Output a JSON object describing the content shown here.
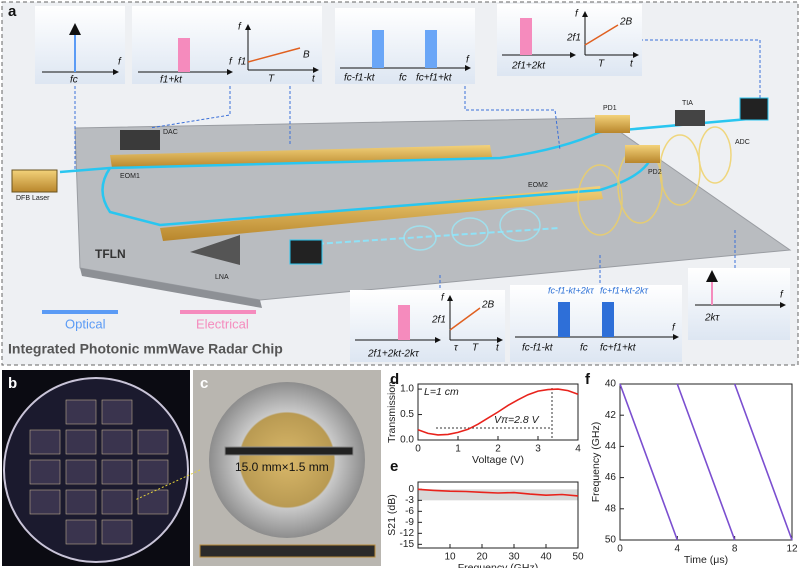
{
  "panel_labels": [
    "a",
    "b",
    "c",
    "d",
    "e",
    "f"
  ],
  "diagram": {
    "title": "Integrated Photonic mmWave Radar Chip",
    "legend": [
      {
        "label": "Optical",
        "color": "#5b9bf5"
      },
      {
        "label": "Electrical",
        "color": "#f58bbd"
      }
    ],
    "components": {
      "laser": "DFB Laser",
      "dac": "DAC",
      "eom1": "EOM1",
      "eom2": "EOM2",
      "substrate": "TFLN",
      "lna": "LNA",
      "pd1": "PD1",
      "tia": "TIA",
      "pd2": "PD2",
      "adc": "ADC"
    },
    "insets": [
      {
        "labels": [
          "fc",
          "f"
        ]
      },
      {
        "labels": [
          "f1+kt",
          "f"
        ]
      },
      {
        "labels": [
          "f",
          "t",
          "f1",
          "B",
          "T"
        ]
      },
      {
        "labels": [
          "fc-f1-kt",
          "fc",
          "fc+f1+kt",
          "f"
        ]
      },
      {
        "labels": [
          "2f1+2kt",
          "f",
          "t",
          "2f1",
          "2B",
          "T"
        ]
      },
      {
        "labels": [
          "2f1+2kt-2kτ",
          "f",
          "t",
          "2f1",
          "2B",
          "τ",
          "T"
        ]
      },
      {
        "labels": [
          "fc-f1-kt+2kτ",
          "fc+f1+kt-2kτ",
          "fc-f1-kt",
          "fc",
          "fc+f1+kt",
          "f"
        ]
      },
      {
        "labels": [
          "2kτ",
          "f"
        ]
      }
    ]
  },
  "photo_c": {
    "dimension": "15.0 mm×1.5 mm"
  },
  "chart_data": [
    {
      "type": "line",
      "x_label": "Voltage (V)",
      "y_label": "Transmission",
      "annotations": [
        "L=1 cm",
        "Vπ=2.8 V"
      ],
      "x": [
        0,
        0.25,
        0.5,
        0.75,
        1,
        1.25,
        1.5,
        1.75,
        2,
        2.25,
        2.5,
        2.75,
        3,
        3.25,
        3.5,
        3.75,
        4
      ],
      "series": [
        {
          "color": "#e8231c",
          "values": [
            0.2,
            0.13,
            0.1,
            0.11,
            0.15,
            0.21,
            0.31,
            0.43,
            0.55,
            0.68,
            0.79,
            0.89,
            0.96,
            0.99,
            1.0,
            0.97,
            0.9
          ]
        }
      ],
      "xlim": [
        0,
        4
      ],
      "xticks": [
        0,
        1,
        2,
        3,
        4
      ],
      "ylim": [
        0,
        1.1
      ],
      "yticks": [
        {
          "value": 0,
          "label": "0.0"
        },
        {
          "value": 0.5,
          "label": "0.5"
        },
        {
          "value": 1,
          "label": "1.0"
        }
      ]
    },
    {
      "type": "line",
      "x_label": "Frequency (GHz)",
      "y_label": "S21 (dB)",
      "x": [
        0,
        5,
        10,
        15,
        20,
        25,
        30,
        35,
        40,
        45,
        50
      ],
      "series": [
        {
          "color": "#e8231c",
          "values": [
            0,
            -0.3,
            -0.5,
            -0.6,
            -0.8,
            -1.0,
            -0.9,
            -1.3,
            -1.6,
            -1.4,
            -1.8
          ]
        }
      ],
      "shaded_range": [
        -3,
        0
      ],
      "xlim": [
        0,
        50
      ],
      "xticks": [
        10,
        20,
        30,
        40,
        50
      ],
      "ylim": [
        -16,
        2
      ],
      "yticks": [
        0,
        -3,
        -6,
        -9,
        -12,
        -15
      ]
    },
    {
      "type": "line",
      "x_label": "Time (μs)",
      "y_label": "Frequency (GHz)",
      "x": [
        0,
        4,
        4,
        4,
        8,
        8,
        8,
        12
      ],
      "series": [
        {
          "color": "#7b4fd0",
          "values": [
            40,
            50,
            null,
            40,
            50,
            null,
            40,
            50
          ]
        }
      ],
      "xlim": [
        0,
        12
      ],
      "xticks": [
        0,
        4,
        8,
        12
      ],
      "ylim": [
        50,
        40
      ],
      "yticks": [
        40,
        42,
        44,
        46,
        48,
        50
      ]
    }
  ]
}
